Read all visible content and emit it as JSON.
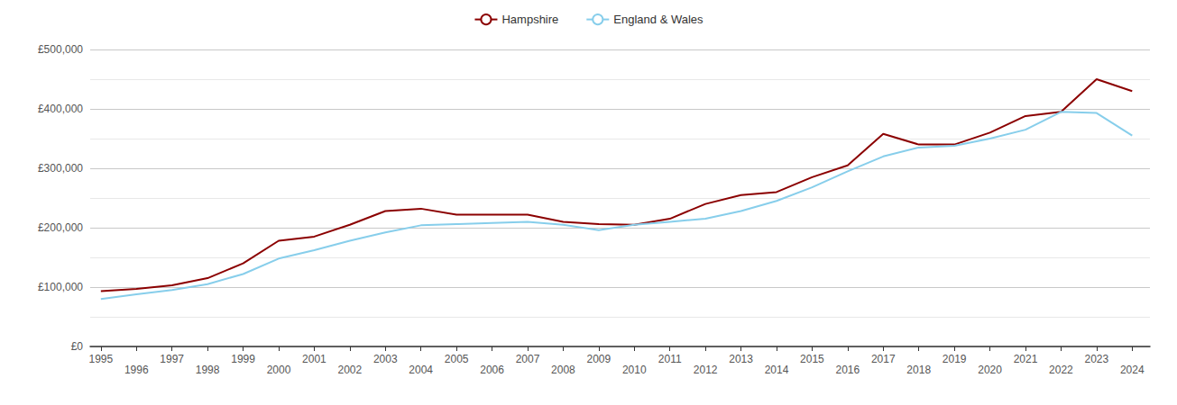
{
  "chart_data": {
    "type": "line",
    "x": [
      1995,
      1996,
      1997,
      1998,
      1999,
      2000,
      2001,
      2002,
      2003,
      2004,
      2005,
      2006,
      2007,
      2008,
      2009,
      2010,
      2011,
      2012,
      2013,
      2014,
      2015,
      2016,
      2017,
      2018,
      2019,
      2020,
      2021,
      2022,
      2023,
      2024
    ],
    "series": [
      {
        "name": "Hampshire",
        "color": "#8B0000",
        "values": [
          93000,
          97000,
          103000,
          115000,
          140000,
          178000,
          185000,
          205000,
          228000,
          232000,
          222000,
          222000,
          222000,
          210000,
          206000,
          205000,
          215000,
          240000,
          255000,
          260000,
          285000,
          305000,
          358000,
          340000,
          340000,
          360000,
          388000,
          395000,
          450000,
          430000
        ]
      },
      {
        "name": "England & Wales",
        "color": "#87CEEB",
        "values": [
          80000,
          88000,
          95000,
          105000,
          122000,
          148000,
          162000,
          178000,
          192000,
          204000,
          206000,
          208000,
          210000,
          205000,
          196000,
          205000,
          210000,
          215000,
          228000,
          245000,
          268000,
          295000,
          320000,
          335000,
          338000,
          350000,
          365000,
          395000,
          393000,
          355000
        ]
      }
    ],
    "xlim": [
      1994.7,
      2024.5
    ],
    "xticks": [
      1995,
      1996,
      1997,
      1998,
      1999,
      2000,
      2001,
      2002,
      2003,
      2004,
      2005,
      2006,
      2007,
      2008,
      2009,
      2010,
      2011,
      2012,
      2013,
      2014,
      2015,
      2016,
      2017,
      2018,
      2019,
      2020,
      2021,
      2022,
      2023,
      2024
    ],
    "ylim": [
      0,
      500000
    ],
    "yticks": [
      {
        "value": 0,
        "label": "£0"
      },
      {
        "value": 100000,
        "label": "£100,000"
      },
      {
        "value": 200000,
        "label": "£200,000"
      },
      {
        "value": 300000,
        "label": "£300,000"
      },
      {
        "value": 400000,
        "label": "£400,000"
      },
      {
        "value": 500000,
        "label": "£500,000"
      }
    ],
    "grid": true,
    "legend": "top"
  }
}
